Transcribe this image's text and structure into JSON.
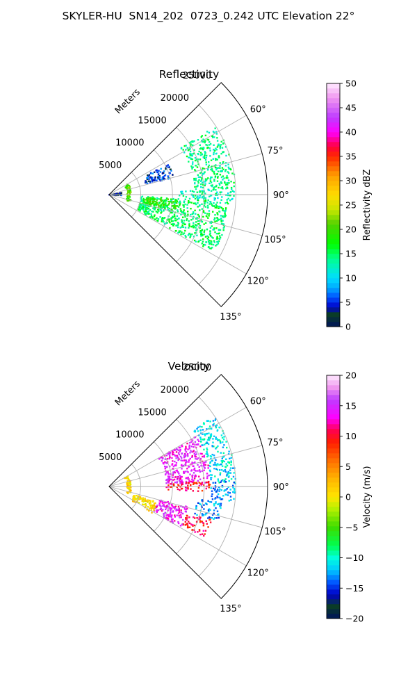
{
  "suptitle": "SKYLER-HU  SN14_202  0723_0.242 UTC Elevation 22°",
  "chart_data": [
    {
      "type": "polar-sector",
      "title": "Reflectivity",
      "theta_range_deg": [
        45,
        135
      ],
      "theta_ticks": [
        "60°",
        "75°",
        "90°",
        "105°",
        "120°",
        "135°"
      ],
      "r_ticks": [
        "5000",
        "10000",
        "15000",
        "20000",
        "25000"
      ],
      "r_max": 25000,
      "r_unit": "Meters",
      "colorbar": {
        "label": "Reflectivity dBZ",
        "range": [
          0,
          50
        ],
        "ticks": [
          "0",
          "5",
          "10",
          "15",
          "20",
          "25",
          "30",
          "35",
          "40",
          "45",
          "50"
        ]
      },
      "echo_regions": [
        {
          "theta": [
            57,
            87
          ],
          "r": [
            13500,
            20000
          ],
          "value": 14
        },
        {
          "theta": [
            87,
            93
          ],
          "r": [
            11000,
            20000
          ],
          "value": 13
        },
        {
          "theta": [
            93,
            119
          ],
          "r": [
            5000,
            19000
          ],
          "value": 15
        },
        {
          "theta": [
            94,
            104
          ],
          "r": [
            5500,
            11000
          ],
          "value": 19
        },
        {
          "theta": [
            60,
            110
          ],
          "r": [
            2800,
            3500
          ],
          "value": 20
        },
        {
          "theta": [
            62,
            75
          ],
          "r": [
            6000,
            10500
          ],
          "value": 5
        },
        {
          "theta": [
            80,
            95
          ],
          "r": [
            0,
            2000
          ],
          "value": 4
        }
      ]
    },
    {
      "type": "polar-sector",
      "title": "Velocity",
      "theta_range_deg": [
        45,
        135
      ],
      "theta_ticks": [
        "60°",
        "75°",
        "90°",
        "105°",
        "120°",
        "135°"
      ],
      "r_ticks": [
        "5000",
        "10000",
        "15000",
        "20000",
        "25000"
      ],
      "r_max": 25000,
      "r_unit": "Meters",
      "colorbar": {
        "label": "Velocity (m/s)",
        "range": [
          -20,
          20
        ],
        "ticks": [
          "−20",
          "−15",
          "−10",
          "−5",
          "0",
          "5",
          "10",
          "15",
          "20"
        ]
      },
      "echo_regions": [
        {
          "theta": [
            56,
            88
          ],
          "r": [
            16000,
            20000
          ],
          "value": -11
        },
        {
          "theta": [
            60,
            88
          ],
          "r": [
            9000,
            16000
          ],
          "value": 14
        },
        {
          "theta": [
            87,
            93
          ],
          "r": [
            9000,
            16000
          ],
          "value": 10
        },
        {
          "theta": [
            87,
            97
          ],
          "r": [
            16000,
            20000
          ],
          "value": -13
        },
        {
          "theta": [
            98,
            108
          ],
          "r": [
            14000,
            18000
          ],
          "value": -13
        },
        {
          "theta": [
            108,
            118
          ],
          "r": [
            13000,
            17000
          ],
          "value": 10
        },
        {
          "theta": [
            104,
            120
          ],
          "r": [
            8000,
            13000
          ],
          "value": 14
        },
        {
          "theta": [
            108,
            122
          ],
          "r": [
            4000,
            8000
          ],
          "value": 1
        },
        {
          "theta": [
            60,
            110
          ],
          "r": [
            2800,
            3500
          ],
          "value": 1
        }
      ]
    }
  ]
}
